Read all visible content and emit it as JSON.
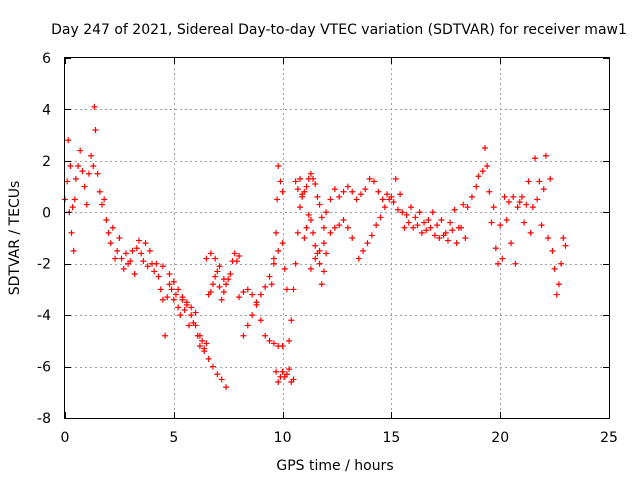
{
  "chart_data": {
    "type": "scatter",
    "title": "Day 247 of 2021, Sidereal Day-to-day VTEC variation (SDTVAR) for receiver maw1",
    "xlabel": "GPS time / hours",
    "ylabel": "SDTVAR / TECUs",
    "xlim": [
      0,
      25
    ],
    "ylim": [
      -8,
      6
    ],
    "xticks": [
      0,
      5,
      10,
      15,
      20,
      25
    ],
    "yticks": [
      -8,
      -6,
      -4,
      -2,
      0,
      2,
      4,
      6
    ],
    "grid": true,
    "marker": "+",
    "color": "#ff0000",
    "series": [
      {
        "name": "maw1",
        "points": [
          [
            0.0,
            0.5
          ],
          [
            0.1,
            1.2
          ],
          [
            0.15,
            2.8
          ],
          [
            0.2,
            0.0
          ],
          [
            0.25,
            1.8
          ],
          [
            0.3,
            -0.8
          ],
          [
            0.35,
            0.2
          ],
          [
            0.4,
            -1.5
          ],
          [
            0.45,
            0.5
          ],
          [
            0.5,
            1.3
          ],
          [
            0.6,
            1.8
          ],
          [
            0.7,
            2.4
          ],
          [
            0.8,
            1.6
          ],
          [
            0.9,
            1.0
          ],
          [
            1.0,
            0.3
          ],
          [
            1.1,
            1.5
          ],
          [
            1.2,
            2.2
          ],
          [
            1.3,
            1.8
          ],
          [
            1.35,
            4.1
          ],
          [
            1.4,
            3.2
          ],
          [
            1.5,
            1.5
          ],
          [
            1.6,
            0.8
          ],
          [
            1.7,
            0.3
          ],
          [
            1.8,
            0.5
          ],
          [
            1.9,
            -0.3
          ],
          [
            2.0,
            -0.8
          ],
          [
            2.1,
            -1.2
          ],
          [
            2.2,
            -0.6
          ],
          [
            2.3,
            -1.8
          ],
          [
            2.4,
            -1.5
          ],
          [
            2.5,
            -1.0
          ],
          [
            2.6,
            -1.8
          ],
          [
            2.7,
            -2.2
          ],
          [
            2.8,
            -1.6
          ],
          [
            2.9,
            -2.0
          ],
          [
            3.0,
            -1.9
          ],
          [
            3.1,
            -1.5
          ],
          [
            3.2,
            -2.4
          ],
          [
            3.3,
            -1.4
          ],
          [
            3.4,
            -1.1
          ],
          [
            3.5,
            -1.6
          ],
          [
            3.6,
            -1.9
          ],
          [
            3.7,
            -1.2
          ],
          [
            3.8,
            -2.1
          ],
          [
            3.9,
            -1.5
          ],
          [
            4.0,
            -2.0
          ],
          [
            4.1,
            -2.3
          ],
          [
            4.2,
            -2.0
          ],
          [
            4.3,
            -2.5
          ],
          [
            4.4,
            -3.0
          ],
          [
            4.5,
            -3.4
          ],
          [
            4.6,
            -4.8
          ],
          [
            4.7,
            -3.3
          ],
          [
            4.8,
            -2.8
          ],
          [
            4.9,
            -3.0
          ],
          [
            5.0,
            -3.4
          ],
          [
            5.1,
            -3.2
          ],
          [
            5.2,
            -3.7
          ],
          [
            5.3,
            -4.0
          ],
          [
            5.4,
            -3.4
          ],
          [
            5.5,
            -3.8
          ],
          [
            5.6,
            -3.5
          ],
          [
            5.7,
            -4.4
          ],
          [
            5.8,
            -3.7
          ],
          [
            5.9,
            -4.3
          ],
          [
            6.0,
            -3.9
          ],
          [
            6.1,
            -4.8
          ],
          [
            6.2,
            -5.2
          ],
          [
            6.3,
            -5.0
          ],
          [
            6.4,
            -5.4
          ],
          [
            6.5,
            -5.1
          ],
          [
            6.6,
            -3.2
          ],
          [
            6.7,
            -3.1
          ],
          [
            6.8,
            -2.8
          ],
          [
            6.9,
            -2.5
          ],
          [
            7.0,
            -2.3
          ],
          [
            7.1,
            -2.9
          ],
          [
            7.2,
            -3.4
          ],
          [
            7.3,
            -3.1
          ],
          [
            7.4,
            -2.8
          ],
          [
            7.5,
            -2.6
          ],
          [
            7.6,
            -2.4
          ],
          [
            7.7,
            -1.9
          ],
          [
            7.8,
            -1.6
          ],
          [
            7.9,
            -1.9
          ],
          [
            8.0,
            -1.7
          ],
          [
            4.5,
            -2.1
          ],
          [
            4.8,
            -2.4
          ],
          [
            5.0,
            -2.7
          ],
          [
            5.2,
            -3.0
          ],
          [
            5.4,
            -3.3
          ],
          [
            5.6,
            -3.6
          ],
          [
            5.8,
            -4.0
          ],
          [
            6.0,
            -4.4
          ],
          [
            6.2,
            -4.8
          ],
          [
            6.4,
            -5.3
          ],
          [
            6.6,
            -5.7
          ],
          [
            6.8,
            -6.0
          ],
          [
            7.0,
            -6.3
          ],
          [
            7.2,
            -6.5
          ],
          [
            7.4,
            -6.8
          ],
          [
            6.5,
            -1.8
          ],
          [
            6.7,
            -1.6
          ],
          [
            6.9,
            -1.8
          ],
          [
            7.1,
            -2.1
          ],
          [
            7.3,
            -2.6
          ],
          [
            8.2,
            -4.8
          ],
          [
            8.4,
            -4.4
          ],
          [
            8.6,
            -4.0
          ],
          [
            8.8,
            -3.6
          ],
          [
            9.0,
            -3.2
          ],
          [
            9.2,
            -2.9
          ],
          [
            9.4,
            -2.5
          ],
          [
            9.6,
            -2.0
          ],
          [
            9.8,
            -1.5
          ],
          [
            10.0,
            -1.2
          ],
          [
            8.0,
            -3.3
          ],
          [
            8.2,
            -3.1
          ],
          [
            8.4,
            -3.0
          ],
          [
            8.6,
            -3.2
          ],
          [
            8.8,
            -3.5
          ],
          [
            9.0,
            -4.2
          ],
          [
            9.2,
            -4.8
          ],
          [
            9.4,
            -5.0
          ],
          [
            9.6,
            -5.1
          ],
          [
            9.8,
            -5.2
          ],
          [
            10.0,
            -5.2
          ],
          [
            9.7,
            -6.2
          ],
          [
            9.8,
            -6.6
          ],
          [
            9.9,
            -6.4
          ],
          [
            10.0,
            -6.2
          ],
          [
            10.1,
            -6.4
          ],
          [
            10.2,
            -6.3
          ],
          [
            10.3,
            -6.1
          ],
          [
            10.4,
            -6.6
          ],
          [
            10.5,
            -6.5
          ],
          [
            9.5,
            -2.8
          ],
          [
            9.6,
            -1.8
          ],
          [
            9.7,
            -0.8
          ],
          [
            9.75,
            0.5
          ],
          [
            9.8,
            1.8
          ],
          [
            9.9,
            1.2
          ],
          [
            10.0,
            0.8
          ],
          [
            10.1,
            -2.2
          ],
          [
            10.2,
            -3.0
          ],
          [
            10.3,
            -5.0
          ],
          [
            10.4,
            -4.2
          ],
          [
            10.5,
            -3.0
          ],
          [
            10.6,
            -2.0
          ],
          [
            10.7,
            -0.8
          ],
          [
            10.8,
            0.2
          ],
          [
            10.9,
            0.6
          ],
          [
            10.6,
            1.2
          ],
          [
            10.7,
            0.9
          ],
          [
            10.8,
            1.3
          ],
          [
            10.9,
            0.7
          ],
          [
            11.0,
            0.8
          ],
          [
            11.1,
            1.0
          ],
          [
            11.2,
            1.3
          ],
          [
            11.3,
            1.5
          ],
          [
            11.4,
            1.3
          ],
          [
            11.5,
            1.1
          ],
          [
            11.6,
            0.6
          ],
          [
            11.7,
            0.3
          ],
          [
            11.8,
            -0.2
          ],
          [
            11.9,
            -0.6
          ],
          [
            11.0,
            -1.0
          ],
          [
            11.1,
            -0.6
          ],
          [
            11.2,
            -0.1
          ],
          [
            11.3,
            -0.3
          ],
          [
            11.4,
            -0.8
          ],
          [
            11.5,
            -1.3
          ],
          [
            11.6,
            -1.6
          ],
          [
            11.7,
            -2.0
          ],
          [
            11.8,
            -2.8
          ],
          [
            11.9,
            -2.3
          ],
          [
            11.3,
            -2.2
          ],
          [
            11.5,
            -1.8
          ],
          [
            11.7,
            -1.5
          ],
          [
            11.9,
            -1.2
          ],
          [
            12.0,
            -1.6
          ],
          [
            12.2,
            -0.8
          ],
          [
            12.4,
            -0.6
          ],
          [
            12.6,
            -0.5
          ],
          [
            12.8,
            -0.3
          ],
          [
            13.0,
            -0.6
          ],
          [
            13.2,
            -1.0
          ],
          [
            12.0,
            0.0
          ],
          [
            12.2,
            0.5
          ],
          [
            12.4,
            0.9
          ],
          [
            12.6,
            0.6
          ],
          [
            12.8,
            0.8
          ],
          [
            13.0,
            1.0
          ],
          [
            13.2,
            0.8
          ],
          [
            13.4,
            0.5
          ],
          [
            13.6,
            0.7
          ],
          [
            13.8,
            0.9
          ],
          [
            14.0,
            1.3
          ],
          [
            14.2,
            1.2
          ],
          [
            14.4,
            0.8
          ],
          [
            14.6,
            0.5
          ],
          [
            14.8,
            0.7
          ],
          [
            15.0,
            0.6
          ],
          [
            13.5,
            -1.8
          ],
          [
            13.7,
            -1.5
          ],
          [
            13.9,
            -1.2
          ],
          [
            14.1,
            -0.9
          ],
          [
            14.3,
            -0.5
          ],
          [
            14.5,
            -0.2
          ],
          [
            14.7,
            0.2
          ],
          [
            14.9,
            0.5
          ],
          [
            15.1,
            0.4
          ],
          [
            15.3,
            0.1
          ],
          [
            15.5,
            0.0
          ],
          [
            15.7,
            -0.1
          ],
          [
            15.9,
            0.2
          ],
          [
            16.1,
            -0.2
          ],
          [
            16.3,
            0.0
          ],
          [
            16.5,
            -0.4
          ],
          [
            16.7,
            -0.3
          ],
          [
            16.9,
            0.0
          ],
          [
            17.1,
            -0.5
          ],
          [
            17.3,
            -0.3
          ],
          [
            17.5,
            -0.8
          ],
          [
            17.7,
            -0.4
          ],
          [
            17.9,
            0.1
          ],
          [
            18.1,
            -0.6
          ],
          [
            18.3,
            0.3
          ],
          [
            18.5,
            0.2
          ],
          [
            18.7,
            0.6
          ],
          [
            18.9,
            1.0
          ],
          [
            19.0,
            1.4
          ],
          [
            19.2,
            1.6
          ],
          [
            19.3,
            2.5
          ],
          [
            19.4,
            1.8
          ],
          [
            19.5,
            0.8
          ],
          [
            19.6,
            -0.4
          ],
          [
            19.7,
            0.2
          ],
          [
            19.8,
            -1.4
          ],
          [
            19.9,
            -2.0
          ],
          [
            20.0,
            -0.5
          ],
          [
            20.1,
            -1.8
          ],
          [
            20.2,
            0.6
          ],
          [
            20.3,
            -0.3
          ],
          [
            20.4,
            0.4
          ],
          [
            20.5,
            -1.2
          ],
          [
            20.6,
            0.6
          ],
          [
            20.7,
            -2.0
          ],
          [
            20.8,
            0.2
          ],
          [
            20.9,
            0.4
          ],
          [
            21.0,
            0.6
          ],
          [
            21.1,
            -0.4
          ],
          [
            21.2,
            0.3
          ],
          [
            21.3,
            1.2
          ],
          [
            21.4,
            -0.8
          ],
          [
            21.5,
            0.2
          ],
          [
            21.6,
            2.1
          ],
          [
            21.7,
            0.5
          ],
          [
            21.8,
            1.2
          ],
          [
            21.9,
            -0.5
          ],
          [
            22.0,
            0.9
          ],
          [
            22.1,
            2.2
          ],
          [
            22.2,
            -1.0
          ],
          [
            22.3,
            1.3
          ],
          [
            22.4,
            -1.5
          ],
          [
            22.5,
            -2.2
          ],
          [
            22.6,
            -3.2
          ],
          [
            22.7,
            -2.8
          ],
          [
            22.8,
            -2.0
          ],
          [
            22.9,
            -1.0
          ],
          [
            23.0,
            -1.3
          ],
          [
            15.2,
            1.3
          ],
          [
            15.4,
            0.7
          ],
          [
            15.6,
            -0.6
          ],
          [
            15.8,
            -0.4
          ],
          [
            16.0,
            -0.6
          ],
          [
            16.2,
            -0.5
          ],
          [
            16.4,
            -0.8
          ],
          [
            16.6,
            -0.7
          ],
          [
            16.8,
            -0.6
          ],
          [
            17.0,
            -0.9
          ],
          [
            17.2,
            -1.0
          ],
          [
            17.4,
            -0.9
          ],
          [
            17.6,
            -1.1
          ],
          [
            17.8,
            -0.7
          ],
          [
            18.0,
            -1.2
          ],
          [
            18.2,
            -0.6
          ],
          [
            18.4,
            -1.0
          ]
        ]
      }
    ]
  }
}
